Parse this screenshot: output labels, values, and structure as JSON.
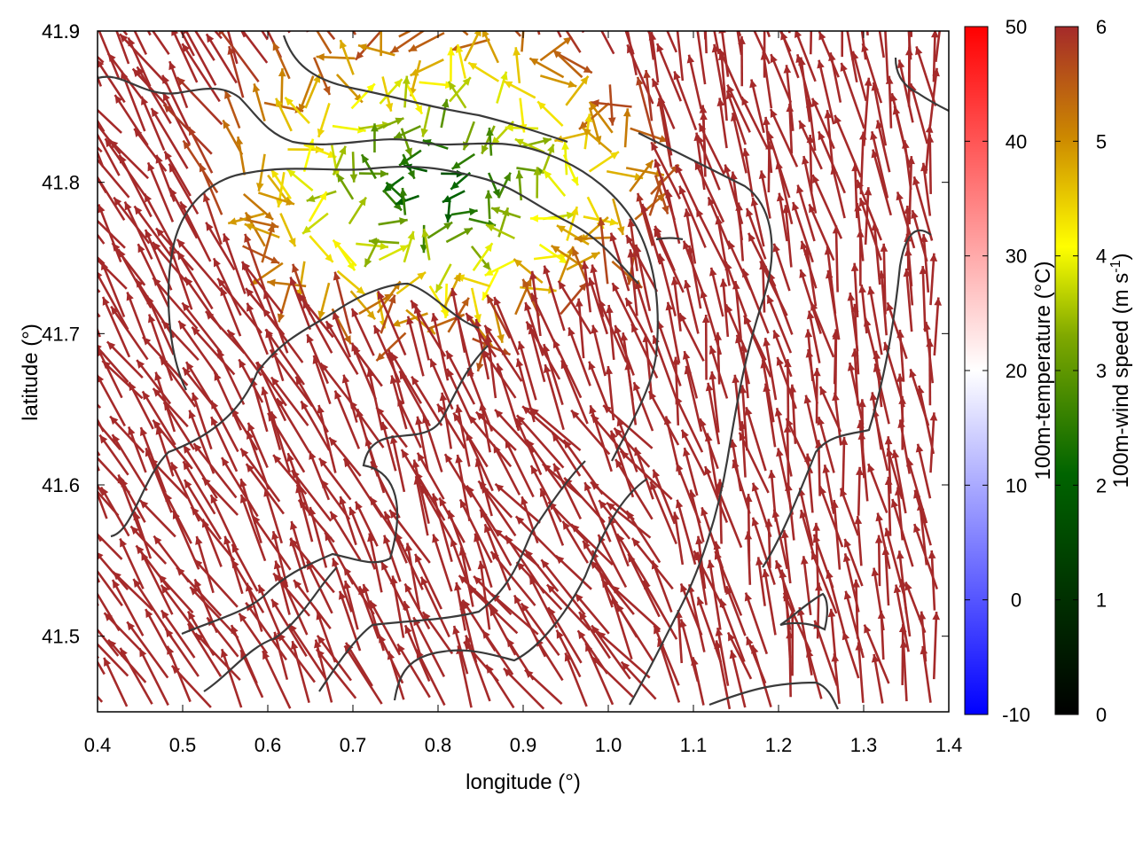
{
  "chart_data": {
    "type": "vector_field",
    "xlabel": "longitude (°)",
    "ylabel": "latitude (°)",
    "xlim": [
      0.4,
      1.4
    ],
    "ylim": [
      41.45,
      41.9
    ],
    "xticks": [
      "0.4",
      "0.5",
      "0.6",
      "0.7",
      "0.8",
      "0.9",
      "1.0",
      "1.1",
      "1.2",
      "1.3",
      "1.4"
    ],
    "yticks": [
      "41.5",
      "41.6",
      "41.7",
      "41.8",
      "41.9"
    ],
    "grid": false,
    "vector_color": "#a52a2a",
    "low_wind_region": {
      "description_lon": [
        0.55,
        1.05
      ],
      "description_lat": [
        41.65,
        41.9
      ]
    },
    "colorbars": [
      {
        "label": "100m-temperature (°C)",
        "range": [
          -10,
          50
        ],
        "ticks": [
          "-10",
          "0",
          "10",
          "20",
          "30",
          "40",
          "50"
        ],
        "colors": [
          "#0000ff",
          "#ffffff",
          "#ff0000"
        ]
      },
      {
        "label": "100m-wind speed (m s-1)",
        "label_main": "100m-wind speed (m s",
        "label_sup": "-1",
        "label_end": ")",
        "range": [
          0,
          6
        ],
        "ticks": [
          "0",
          "1",
          "2",
          "3",
          "4",
          "5",
          "6"
        ],
        "colors": [
          "#000000",
          "#006400",
          "#ffff00",
          "#a52a2a"
        ]
      }
    ]
  }
}
